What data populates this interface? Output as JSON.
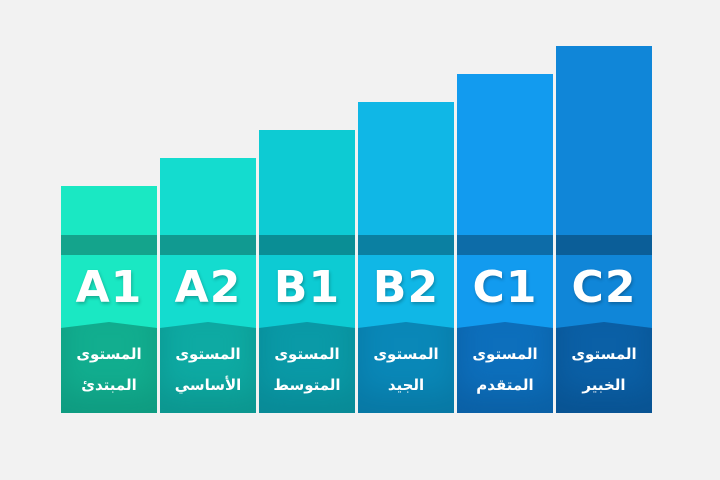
{
  "levels": [
    {
      "code": "A1",
      "line1": "المستوى",
      "line2": "المبتدئ",
      "top": "#1ae8c3",
      "band": "#14a48c",
      "lower": "#12ae8f",
      "lowerDark": "#0f9b80"
    },
    {
      "code": "A2",
      "line1": "المستوى",
      "line2": "الأساسي",
      "top": "#14dccf",
      "band": "#119a91",
      "lower": "#0eaaa3",
      "lowerDark": "#0c968f"
    },
    {
      "code": "B1",
      "line1": "المستوى",
      "line2": "المتوسط",
      "top": "#0dcbd3",
      "band": "#0a8e95",
      "lower": "#0a9aa7",
      "lowerDark": "#098a96"
    },
    {
      "code": "B2",
      "line1": "المستوى",
      "line2": "الجيد",
      "top": "#10b7e6",
      "band": "#0b80a2",
      "lower": "#0a88b8",
      "lowerDark": "#0878a4"
    },
    {
      "code": "C1",
      "line1": "المستوى",
      "line2": "المتقدم",
      "top": "#129bef",
      "band": "#0d6ca8",
      "lower": "#0d6fbc",
      "lowerDark": "#0b60a5"
    },
    {
      "code": "C2",
      "line1": "المستوى",
      "line2": "الخبير",
      "top": "#1086d8",
      "band": "#0b5e98",
      "lower": "#0b60a6",
      "lowerDark": "#095392"
    }
  ]
}
